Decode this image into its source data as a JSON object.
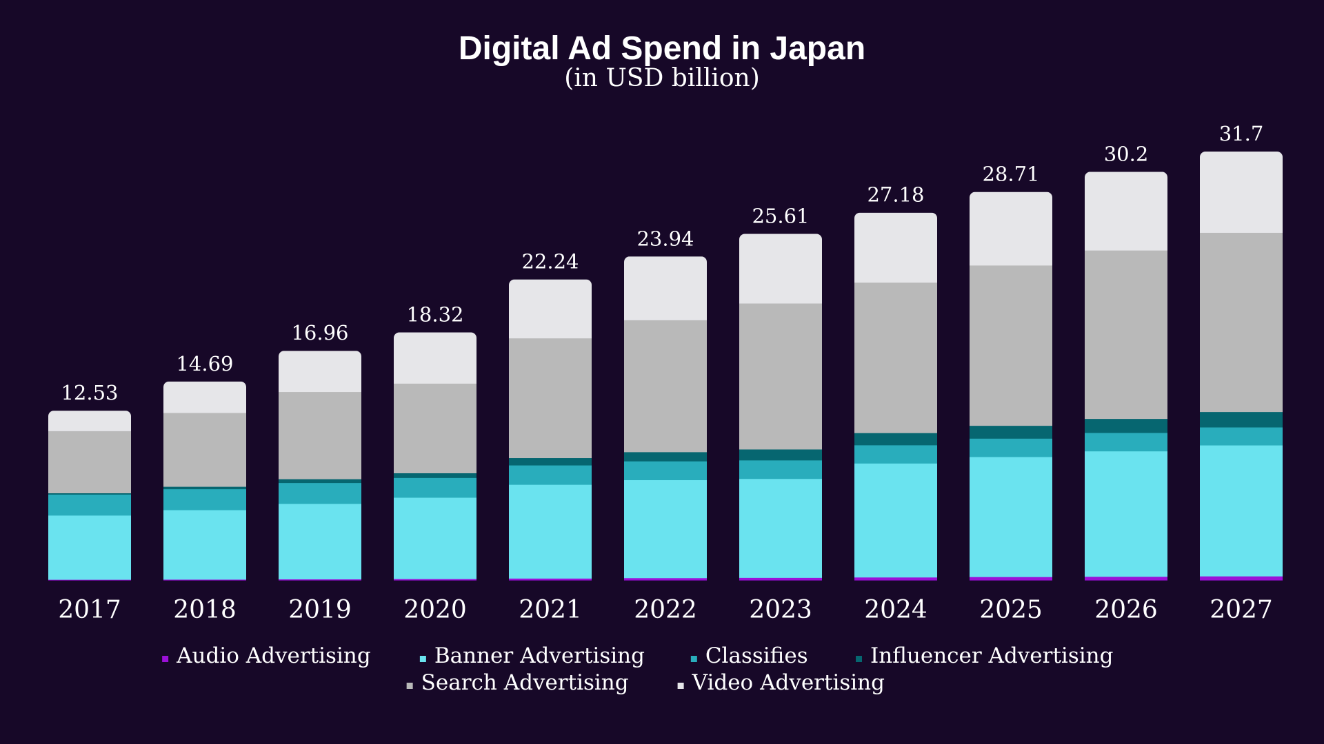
{
  "chart_data": {
    "type": "bar",
    "stacked": true,
    "title": "Digital Ad Spend in Japan",
    "subtitle": "(in USD billion)",
    "categories": [
      "2017",
      "2018",
      "2019",
      "2020",
      "2021",
      "2022",
      "2023",
      "2024",
      "2025",
      "2026",
      "2027"
    ],
    "totals": [
      "12.53",
      "14.69",
      "16.96",
      "18.32",
      "22.24",
      "23.94",
      "25.61",
      "27.18",
      "28.71",
      "30.2",
      "31.7"
    ],
    "ylim": [
      0,
      31.7
    ],
    "grid": false,
    "legend_position": "bottom",
    "series": [
      {
        "name": "Audio Advertising",
        "color": "#9b10d8",
        "values": [
          0.05,
          0.06,
          0.08,
          0.1,
          0.14,
          0.17,
          0.19,
          0.22,
          0.25,
          0.27,
          0.3
        ]
      },
      {
        "name": "Banner Advertising",
        "color": "#6ae3ef",
        "values": [
          4.75,
          5.14,
          5.58,
          6.02,
          6.94,
          7.25,
          7.32,
          8.43,
          8.88,
          9.28,
          9.69
        ]
      },
      {
        "name": "Classifies",
        "color": "#29adbc",
        "values": [
          1.55,
          1.55,
          1.55,
          1.46,
          1.43,
          1.39,
          1.37,
          1.35,
          1.36,
          1.36,
          1.33
        ]
      },
      {
        "name": "Influencer Advertising",
        "color": "#066670",
        "values": [
          0.1,
          0.18,
          0.28,
          0.35,
          0.54,
          0.68,
          0.81,
          0.9,
          0.95,
          1.04,
          1.14
        ]
      },
      {
        "name": "Search Advertising",
        "color": "#b9b9b9",
        "values": [
          4.56,
          5.46,
          6.45,
          6.63,
          8.86,
          9.76,
          10.8,
          11.13,
          11.86,
          12.46,
          13.26
        ]
      },
      {
        "name": "Video Advertising",
        "color": "#e6e6e9",
        "values": [
          1.52,
          2.3,
          3.02,
          3.76,
          4.33,
          4.69,
          5.12,
          5.15,
          5.41,
          5.79,
          5.98
        ]
      }
    ]
  }
}
